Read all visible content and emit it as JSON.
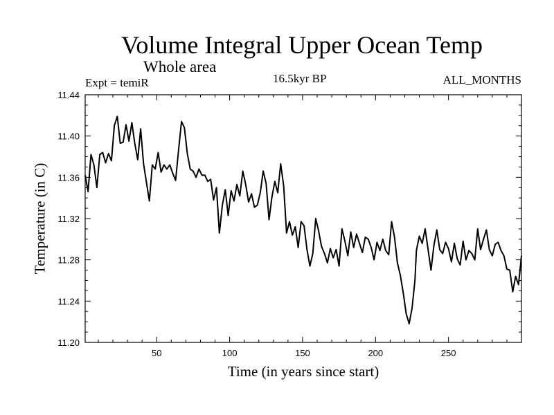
{
  "chart_data": {
    "type": "line",
    "title": "Volume Integral Upper Ocean Temp",
    "subtitle": "Whole area",
    "annotations": {
      "left": "Expt = temiR",
      "center": "16.5kyr BP",
      "right": "ALL_MONTHS"
    },
    "xlabel": "Time (in years since start)",
    "ylabel": "Temperature (in C)",
    "xlim": [
      1,
      300
    ],
    "ylim": [
      11.2,
      11.44
    ],
    "xticks": [
      50,
      100,
      150,
      200,
      250
    ],
    "xtick_labels": [
      "50",
      "100",
      "150",
      "200",
      "250"
    ],
    "yticks": [
      11.2,
      11.24,
      11.28,
      11.32,
      11.36,
      11.4,
      11.44
    ],
    "ytick_labels": [
      "11.20",
      "11.24",
      "11.28",
      "11.32",
      "11.36",
      "11.40",
      "11.44"
    ],
    "grid": false,
    "series": [
      {
        "name": "Volume Integral Upper Ocean Temp",
        "color": "#000000",
        "x": [
          1,
          3,
          5,
          7,
          9,
          11,
          13,
          15,
          17,
          19,
          21,
          23,
          25,
          27,
          29,
          31,
          33,
          35,
          37,
          39,
          41,
          43,
          45,
          47,
          49,
          51,
          53,
          55,
          57,
          59,
          61,
          63,
          65,
          67,
          69,
          71,
          73,
          75,
          77,
          79,
          81,
          83,
          85,
          87,
          89,
          91,
          93,
          95,
          97,
          99,
          101,
          103,
          105,
          107,
          109,
          111,
          113,
          115,
          117,
          119,
          121,
          123,
          125,
          127,
          129,
          131,
          133,
          135,
          137,
          139,
          141,
          143,
          145,
          147,
          149,
          151,
          153,
          155,
          157,
          159,
          161,
          163,
          165,
          167,
          169,
          171,
          173,
          175,
          177,
          179,
          181,
          183,
          185,
          187,
          189,
          191,
          193,
          195,
          197,
          199,
          201,
          203,
          205,
          207,
          209,
          211,
          213,
          215,
          217,
          219,
          221,
          223,
          225,
          227,
          228,
          230,
          232,
          234,
          236,
          238,
          240,
          242,
          244,
          246,
          248,
          250,
          252,
          254,
          256,
          258,
          260,
          262,
          264,
          266,
          268,
          270,
          272,
          274,
          276,
          278,
          280,
          282,
          284,
          286,
          288,
          290,
          292,
          294,
          296,
          298,
          300
        ],
        "values": [
          11.362,
          11.346,
          11.382,
          11.372,
          11.35,
          11.382,
          11.384,
          11.374,
          11.383,
          11.376,
          11.41,
          11.419,
          11.393,
          11.394,
          11.411,
          11.395,
          11.413,
          11.393,
          11.377,
          11.407,
          11.373,
          11.355,
          11.337,
          11.372,
          11.368,
          11.384,
          11.365,
          11.372,
          11.368,
          11.372,
          11.364,
          11.357,
          11.386,
          11.414,
          11.408,
          11.383,
          11.368,
          11.366,
          11.36,
          11.368,
          11.362,
          11.362,
          11.356,
          11.358,
          11.338,
          11.35,
          11.306,
          11.333,
          11.348,
          11.323,
          11.347,
          11.337,
          11.353,
          11.342,
          11.366,
          11.353,
          11.336,
          11.344,
          11.331,
          11.333,
          11.345,
          11.366,
          11.354,
          11.319,
          11.341,
          11.356,
          11.345,
          11.373,
          11.352,
          11.306,
          11.317,
          11.304,
          11.312,
          11.292,
          11.317,
          11.313,
          11.29,
          11.274,
          11.286,
          11.32,
          11.308,
          11.293,
          11.286,
          11.277,
          11.291,
          11.282,
          11.29,
          11.274,
          11.31,
          11.298,
          11.284,
          11.307,
          11.292,
          11.305,
          11.296,
          11.287,
          11.302,
          11.3,
          11.292,
          11.28,
          11.297,
          11.289,
          11.3,
          11.289,
          11.285,
          11.317,
          11.302,
          11.277,
          11.265,
          11.248,
          11.228,
          11.218,
          11.233,
          11.26,
          11.289,
          11.303,
          11.296,
          11.31,
          11.29,
          11.27,
          11.294,
          11.309,
          11.29,
          11.286,
          11.297,
          11.291,
          11.278,
          11.296,
          11.281,
          11.275,
          11.298,
          11.28,
          11.289,
          11.286,
          11.28,
          11.31,
          11.29,
          11.3,
          11.309,
          11.29,
          11.284,
          11.295,
          11.297,
          11.289,
          11.284,
          11.271,
          11.27,
          11.249,
          11.264,
          11.256,
          11.284
        ]
      }
    ]
  }
}
